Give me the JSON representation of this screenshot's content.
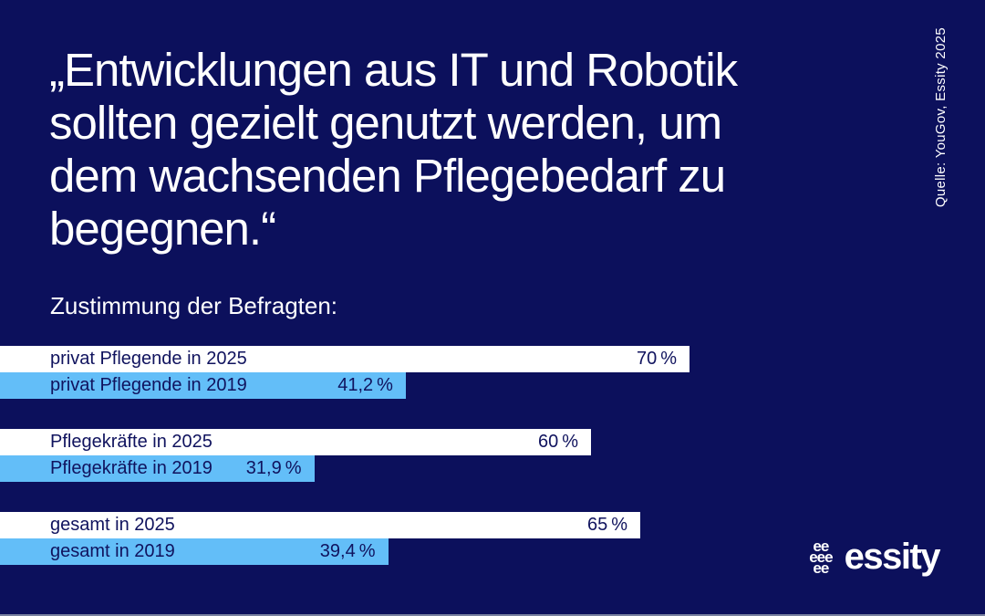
{
  "header": {
    "quote": "„Entwicklungen aus IT und Robotik\nsollten gezielt genutzt werden, um\ndem wachsenden Pflegebedarf zu\nbegegnen.“",
    "source": "Quelle: YouGov, Essity 2025"
  },
  "chart_data": {
    "type": "bar",
    "orientation": "horizontal",
    "title": "Zustimmung der Befragten:",
    "unit": "percent",
    "xlim": [
      0,
      100
    ],
    "grid": false,
    "legend": "none",
    "groups": [
      {
        "name": "privat Pflegende",
        "bars": [
          {
            "label": "privat Pflegende in 2025",
            "value": 70,
            "value_label": "70 %",
            "series": "2025"
          },
          {
            "label": "privat Pflegende in 2019",
            "value": 41.2,
            "value_label": "41,2 %",
            "series": "2019"
          }
        ]
      },
      {
        "name": "Pflegekräfte",
        "bars": [
          {
            "label": "Pflegekräfte in 2025",
            "value": 60,
            "value_label": "60 %",
            "series": "2025"
          },
          {
            "label": "Pflegekräfte in 2019",
            "value": 31.9,
            "value_label": "31,9 %",
            "series": "2019"
          }
        ]
      },
      {
        "name": "gesamt",
        "bars": [
          {
            "label": "gesamt in 2025",
            "value": 65,
            "value_label": "65 %",
            "series": "2025"
          },
          {
            "label": "gesamt in 2019",
            "value": 39.4,
            "value_label": "39,4 %",
            "series": "2019"
          }
        ]
      }
    ]
  },
  "logo": {
    "wordmark": "essity",
    "icon_rows": [
      "ee",
      "eee",
      "ee"
    ]
  },
  "colors": {
    "background": "#0c105c",
    "bar-2025": "#ffffff",
    "bar-2019": "#63bef8",
    "bar-text": "#10135e",
    "light-text": "#ffffff"
  }
}
